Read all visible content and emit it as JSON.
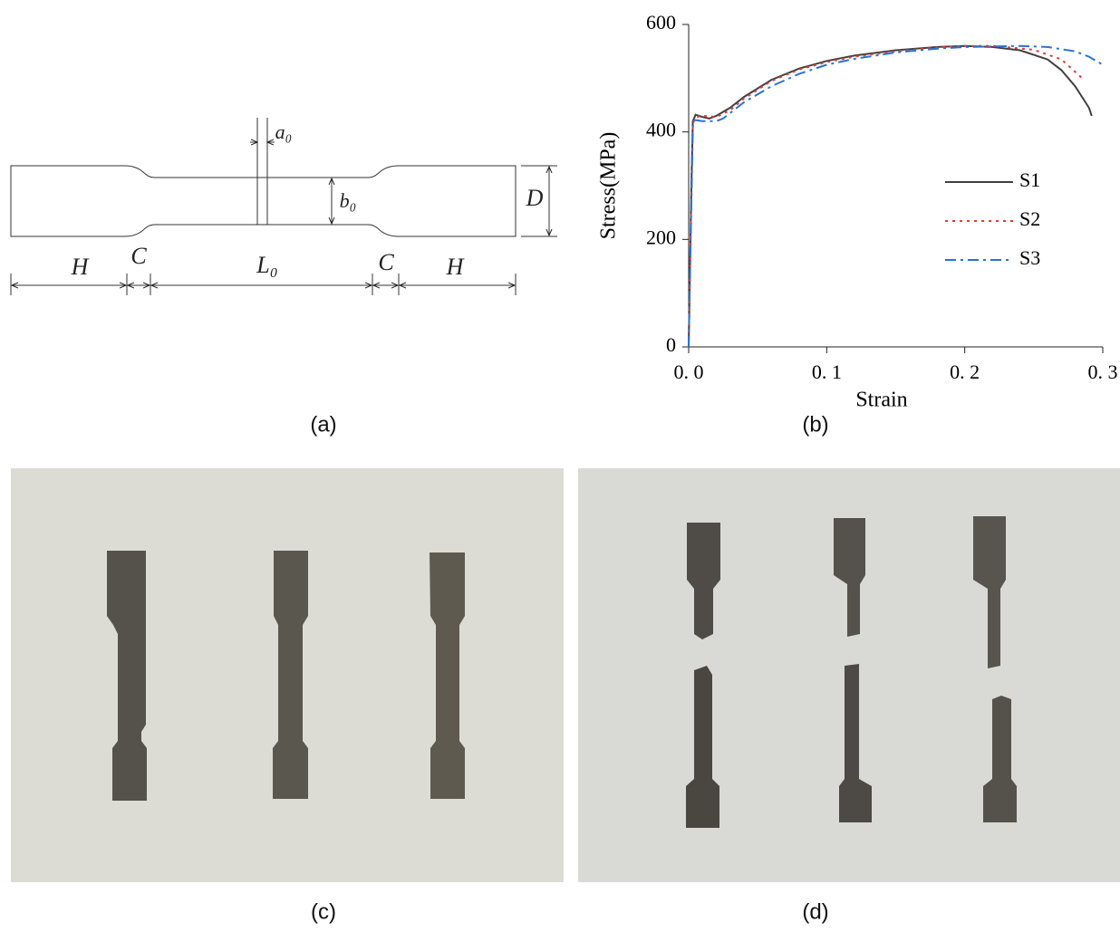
{
  "captions": [
    "(a)",
    "(b)",
    "(c)",
    "(d)"
  ],
  "diagram": {
    "labels": [
      "a₀",
      "b₀",
      "D",
      "H",
      "C",
      "L₀",
      "C",
      "H"
    ]
  },
  "chart_data": {
    "type": "line",
    "xlabel": "Strain",
    "ylabel": "Stress(MPa)",
    "xlim": [
      0,
      0.3
    ],
    "ylim": [
      0,
      600
    ],
    "xticks": [
      {
        "value": 0,
        "label": "0. 0"
      },
      {
        "value": 0.1,
        "label": "0. 1"
      },
      {
        "value": 0.2,
        "label": "0. 2"
      },
      {
        "value": 0.3,
        "label": "0. 3"
      }
    ],
    "yticks": [
      0,
      200,
      400,
      600
    ],
    "legend": "right",
    "series": [
      {
        "name": "S1",
        "color": "#404040",
        "style": "solid",
        "x": [
          0,
          0.002,
          0.003,
          0.005,
          0.01,
          0.015,
          0.02,
          0.03,
          0.04,
          0.06,
          0.08,
          0.1,
          0.12,
          0.15,
          0.18,
          0.2,
          0.22,
          0.24,
          0.26,
          0.27,
          0.28,
          0.29,
          0.292
        ],
        "values": [
          0,
          300,
          420,
          432,
          428,
          425,
          430,
          445,
          465,
          497,
          518,
          532,
          542,
          552,
          558,
          560,
          558,
          552,
          535,
          515,
          485,
          445,
          430
        ]
      },
      {
        "name": "S2",
        "color": "#e03c3c",
        "style": "dotted",
        "x": [
          0,
          0.002,
          0.003,
          0.005,
          0.01,
          0.02,
          0.03,
          0.04,
          0.06,
          0.08,
          0.1,
          0.12,
          0.15,
          0.18,
          0.2,
          0.22,
          0.25,
          0.27,
          0.285
        ],
        "values": [
          0,
          280,
          415,
          428,
          430,
          428,
          440,
          462,
          495,
          516,
          530,
          540,
          550,
          557,
          560,
          560,
          553,
          535,
          500
        ]
      },
      {
        "name": "S3",
        "color": "#2a72d0",
        "style": "dashdot",
        "x": [
          0,
          0.002,
          0.003,
          0.005,
          0.01,
          0.02,
          0.025,
          0.03,
          0.04,
          0.06,
          0.08,
          0.1,
          0.12,
          0.15,
          0.18,
          0.2,
          0.24,
          0.26,
          0.28,
          0.29,
          0.3
        ],
        "values": [
          0,
          270,
          410,
          422,
          420,
          420,
          425,
          435,
          455,
          485,
          508,
          525,
          536,
          548,
          555,
          558,
          560,
          558,
          550,
          540,
          525
        ]
      }
    ]
  }
}
